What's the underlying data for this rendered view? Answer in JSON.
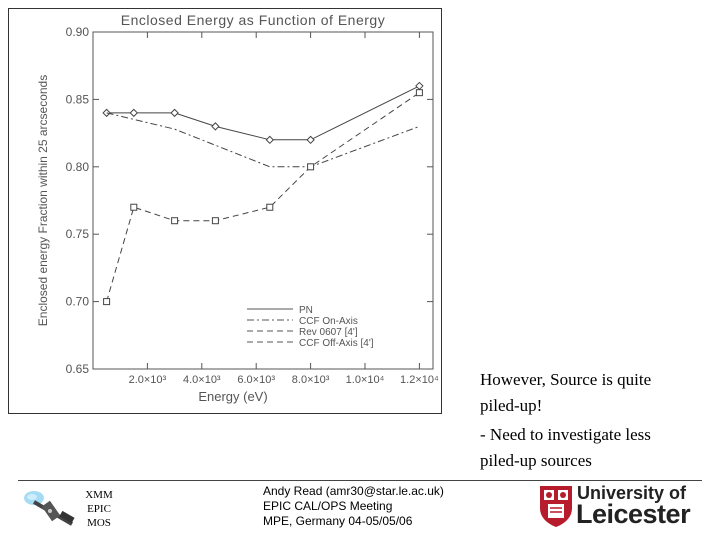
{
  "chart_data": {
    "type": "line",
    "title": "Enclosed Energy as Function of Energy",
    "xlabel": "Energy (eV)",
    "ylabel": "Enclosed energy Fraction within 25 arcseconds",
    "xlim": [
      0,
      12500
    ],
    "ylim": [
      0.65,
      0.9
    ],
    "x_ticks": [
      2000,
      4000,
      6000,
      8000,
      10000,
      12000
    ],
    "x_tick_labels": [
      "2.0×10³",
      "4.0×10³",
      "6.0×10³",
      "8.0×10³",
      "1.0×10⁴",
      "1.2×10⁴"
    ],
    "y_ticks": [
      0.65,
      0.7,
      0.75,
      0.8,
      0.85,
      0.9
    ],
    "y_tick_labels": [
      "0.65",
      "0.70",
      "0.75",
      "0.80",
      "0.85",
      "0.90"
    ],
    "legend_position": "bottom-right",
    "series": [
      {
        "name": "PN",
        "style": "solid",
        "marker": "diamond",
        "x": [
          500,
          1500,
          3000,
          4500,
          6500,
          8000,
          12000
        ],
        "y": [
          0.84,
          0.84,
          0.84,
          0.83,
          0.82,
          0.82,
          0.86
        ]
      },
      {
        "name": "CCF On-Axis",
        "style": "dashdot",
        "marker": "none",
        "x": [
          500,
          3000,
          6500,
          8000,
          12000
        ],
        "y": [
          0.84,
          0.828,
          0.8,
          0.8,
          0.83
        ]
      },
      {
        "name": "Rev 0607 [4']",
        "style": "dashed",
        "marker": "square",
        "x": [
          500,
          1500,
          3000,
          4500,
          6500,
          8000,
          12000
        ],
        "y": [
          0.7,
          0.77,
          0.76,
          0.76,
          0.77,
          0.8,
          0.855
        ]
      },
      {
        "name": "CCF Off-Axis [4']",
        "style": "dashed",
        "marker": "none",
        "x": [],
        "y": []
      }
    ]
  },
  "notes": {
    "line1": "However, Source is quite",
    "line2": "piled-up!",
    "line3": "- Need to investigate less",
    "line4": "piled-up sources"
  },
  "footer": {
    "xmm": {
      "line1": "XMM",
      "line2": "EPIC",
      "line3": "MOS"
    },
    "author": {
      "line1": "Andy Read (amr30@star.le.ac.uk)",
      "line2": "EPIC CAL/OPS Meeting",
      "line3": "MPE, Germany 04-05/05/06"
    },
    "university": {
      "line1": "University of",
      "line2": "Leicester"
    }
  },
  "colors": {
    "brand": "#7a1a2d",
    "axis": "#555555",
    "text": "#000000"
  }
}
